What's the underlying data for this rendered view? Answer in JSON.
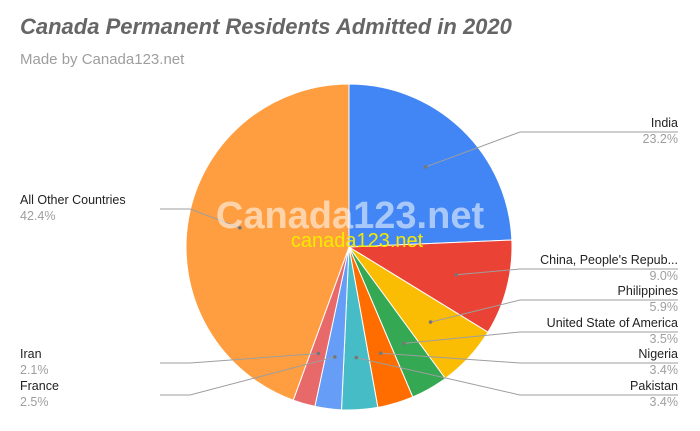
{
  "title": "Canada Permanent Residents Admitted in 2020",
  "subtitle": "Made by Canada123.net",
  "watermark": {
    "primary": "Canada123.net",
    "secondary": "canada123.net"
  },
  "chart_data": {
    "type": "pie",
    "labels": [
      "India",
      "China, People's Repub...",
      "Philippines",
      "United State of America",
      "Nigeria",
      "Pakistan",
      "France",
      "Iran",
      "All Other Countries"
    ],
    "values": [
      23.2,
      9.0,
      5.9,
      3.5,
      3.4,
      3.4,
      2.5,
      2.1,
      42.4
    ],
    "value_labels": [
      "23.2%",
      "9.0%",
      "5.9%",
      "3.5%",
      "3.4%",
      "3.4%",
      "2.5%",
      "2.1%",
      "42.4%"
    ],
    "colors": [
      "#4285f4",
      "#ea4335",
      "#fbbc04",
      "#34a853",
      "#ff6d01",
      "#46bdc6",
      "#e8710a",
      "#f6b26b",
      "#ff9e40"
    ],
    "slice_colors": [
      "#4285f4",
      "#e53935",
      "#fbbc04",
      "#34a853",
      "#ff6d01",
      "#46bdc6",
      "#7baaf7",
      "#f07b72",
      "#fcd04f"
    ],
    "legend": "none"
  }
}
